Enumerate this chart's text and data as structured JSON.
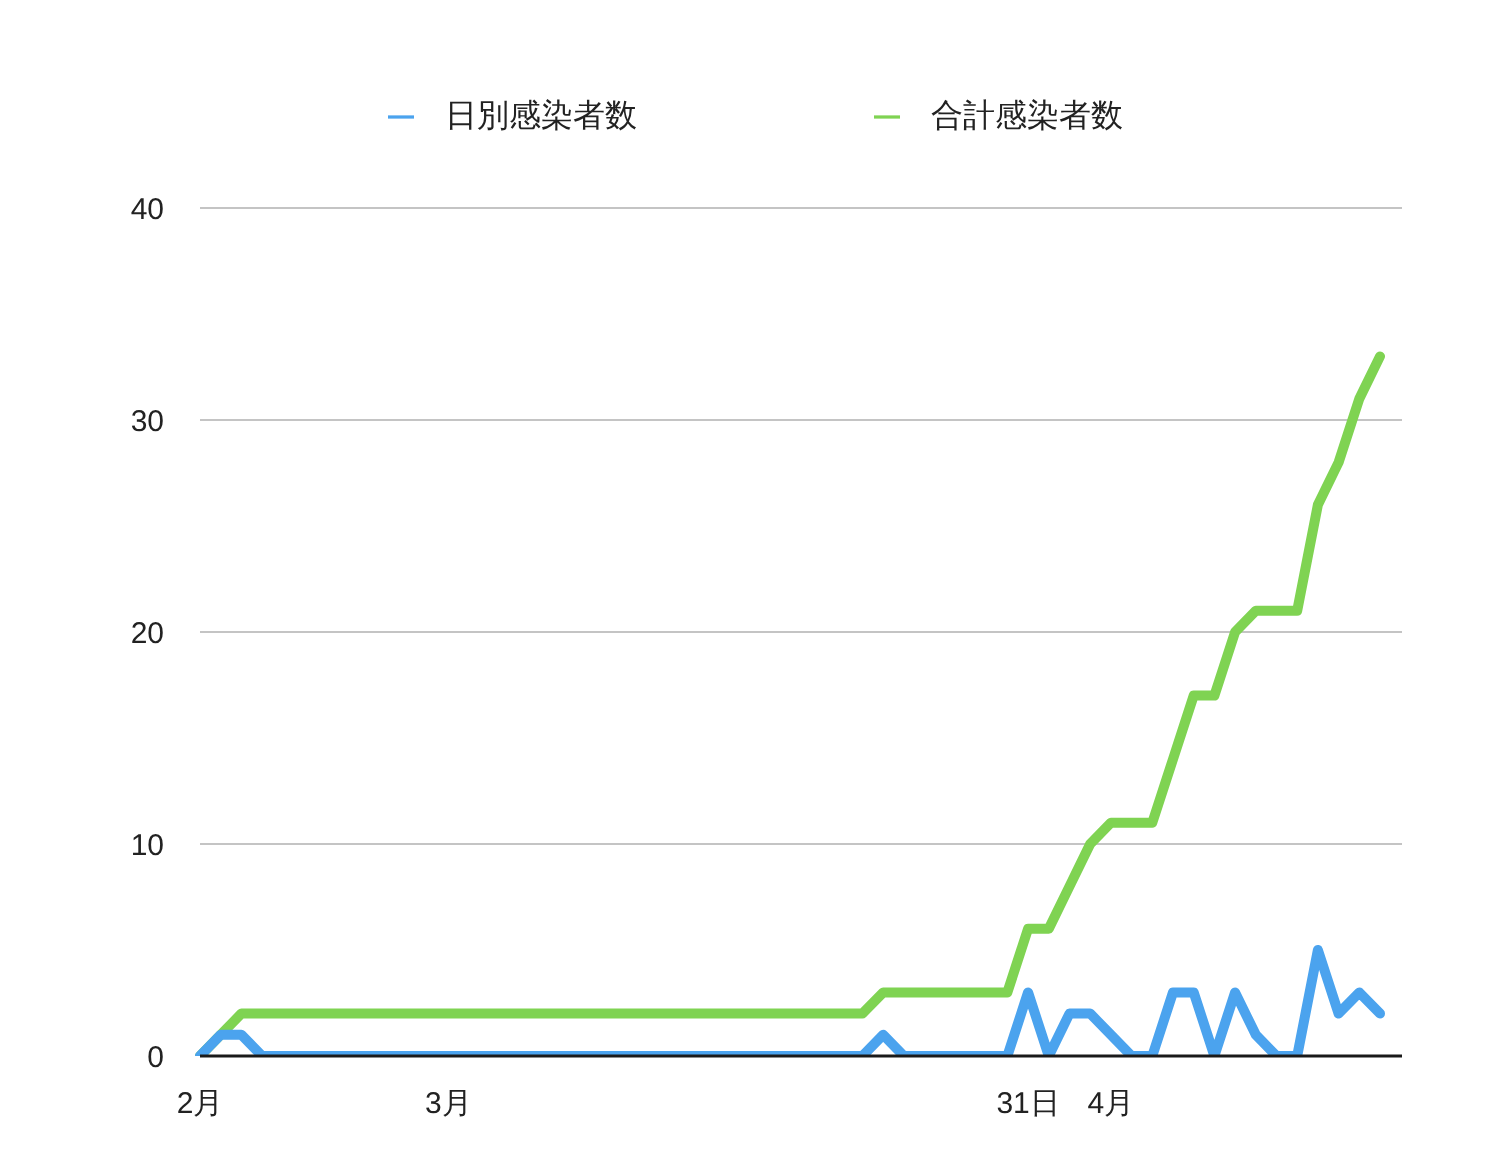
{
  "chart_data": {
    "type": "line",
    "categories": [
      "2月",
      null,
      null,
      null,
      null,
      null,
      null,
      null,
      null,
      null,
      null,
      null,
      "3月",
      null,
      null,
      null,
      null,
      null,
      null,
      null,
      null,
      null,
      null,
      null,
      null,
      null,
      null,
      null,
      null,
      null,
      null,
      null,
      null,
      null,
      null,
      null,
      null,
      null,
      null,
      null,
      "31日",
      null,
      null,
      null,
      "4月",
      null,
      null,
      null,
      null,
      null,
      null,
      null,
      null,
      null,
      null,
      null,
      null,
      null
    ],
    "series": [
      {
        "name": "日別感染者数",
        "color": "#4ba3ee",
        "values": [
          0,
          1,
          1,
          0,
          0,
          0,
          0,
          0,
          0,
          0,
          0,
          0,
          0,
          0,
          0,
          0,
          0,
          0,
          0,
          0,
          0,
          0,
          0,
          0,
          0,
          0,
          0,
          0,
          0,
          0,
          0,
          0,
          0,
          1,
          0,
          0,
          0,
          0,
          0,
          0,
          3,
          0,
          2,
          2,
          1,
          0,
          0,
          3,
          3,
          0,
          3,
          1,
          0,
          0,
          5,
          2,
          3,
          2
        ]
      },
      {
        "name": "合計感染者数",
        "color": "#7fd352",
        "values": [
          0,
          1,
          2,
          2,
          2,
          2,
          2,
          2,
          2,
          2,
          2,
          2,
          2,
          2,
          2,
          2,
          2,
          2,
          2,
          2,
          2,
          2,
          2,
          2,
          2,
          2,
          2,
          2,
          2,
          2,
          2,
          2,
          2,
          3,
          3,
          3,
          3,
          3,
          3,
          3,
          6,
          6,
          8,
          10,
          11,
          11,
          11,
          14,
          17,
          17,
          20,
          21,
          21,
          21,
          26,
          28,
          31,
          33
        ]
      }
    ],
    "ylim": [
      0,
      40
    ],
    "yticks": [
      0,
      10,
      20,
      30,
      40
    ],
    "grid": "y",
    "legend": "top",
    "marker": "none",
    "line_style": "solid"
  }
}
